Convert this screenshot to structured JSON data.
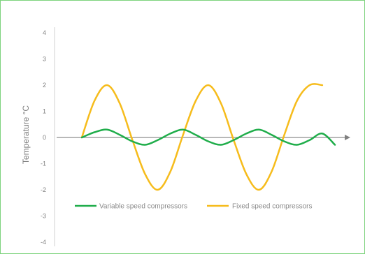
{
  "chart_data": {
    "type": "line",
    "ylabel": "Temperature °C",
    "xlabel": "",
    "ylim": [
      -4,
      4
    ],
    "xlim": [
      0,
      10
    ],
    "y_ticks": [
      "4",
      "3",
      "2",
      "1",
      "0",
      "-1",
      "-2",
      "-3",
      "-4"
    ],
    "grid": false,
    "legend_position": "bottom",
    "series": [
      {
        "name": "Variable speed compressors",
        "color": "#1fad4a",
        "x": [
          0,
          0.5,
          1,
          1.5,
          2,
          2.5,
          3,
          3.5,
          4,
          4.5,
          5,
          5.5,
          6,
          6.5,
          7,
          7.5,
          8,
          8.5,
          9,
          9.5,
          10
        ],
        "values": [
          0,
          0.2,
          0.3,
          0.1,
          -0.15,
          -0.28,
          -0.1,
          0.15,
          0.3,
          0.1,
          -0.15,
          -0.28,
          -0.1,
          0.15,
          0.3,
          0.1,
          -0.15,
          -0.28,
          -0.1,
          0.15,
          -0.28
        ]
      },
      {
        "name": "Fixed speed compressors",
        "color": "#f6bc1c",
        "x": [
          0,
          0.5,
          1,
          1.5,
          2,
          2.5,
          3,
          3.5,
          4,
          4.5,
          5,
          5.5,
          6,
          6.5,
          7,
          7.5,
          8,
          8.5,
          9,
          9.5
        ],
        "values": [
          0,
          1.4,
          2,
          1.3,
          -0.1,
          -1.4,
          -2,
          -1.3,
          0.1,
          1.4,
          2,
          1.3,
          -0.1,
          -1.4,
          -2,
          -1.3,
          0.1,
          1.4,
          2,
          2
        ]
      }
    ]
  }
}
